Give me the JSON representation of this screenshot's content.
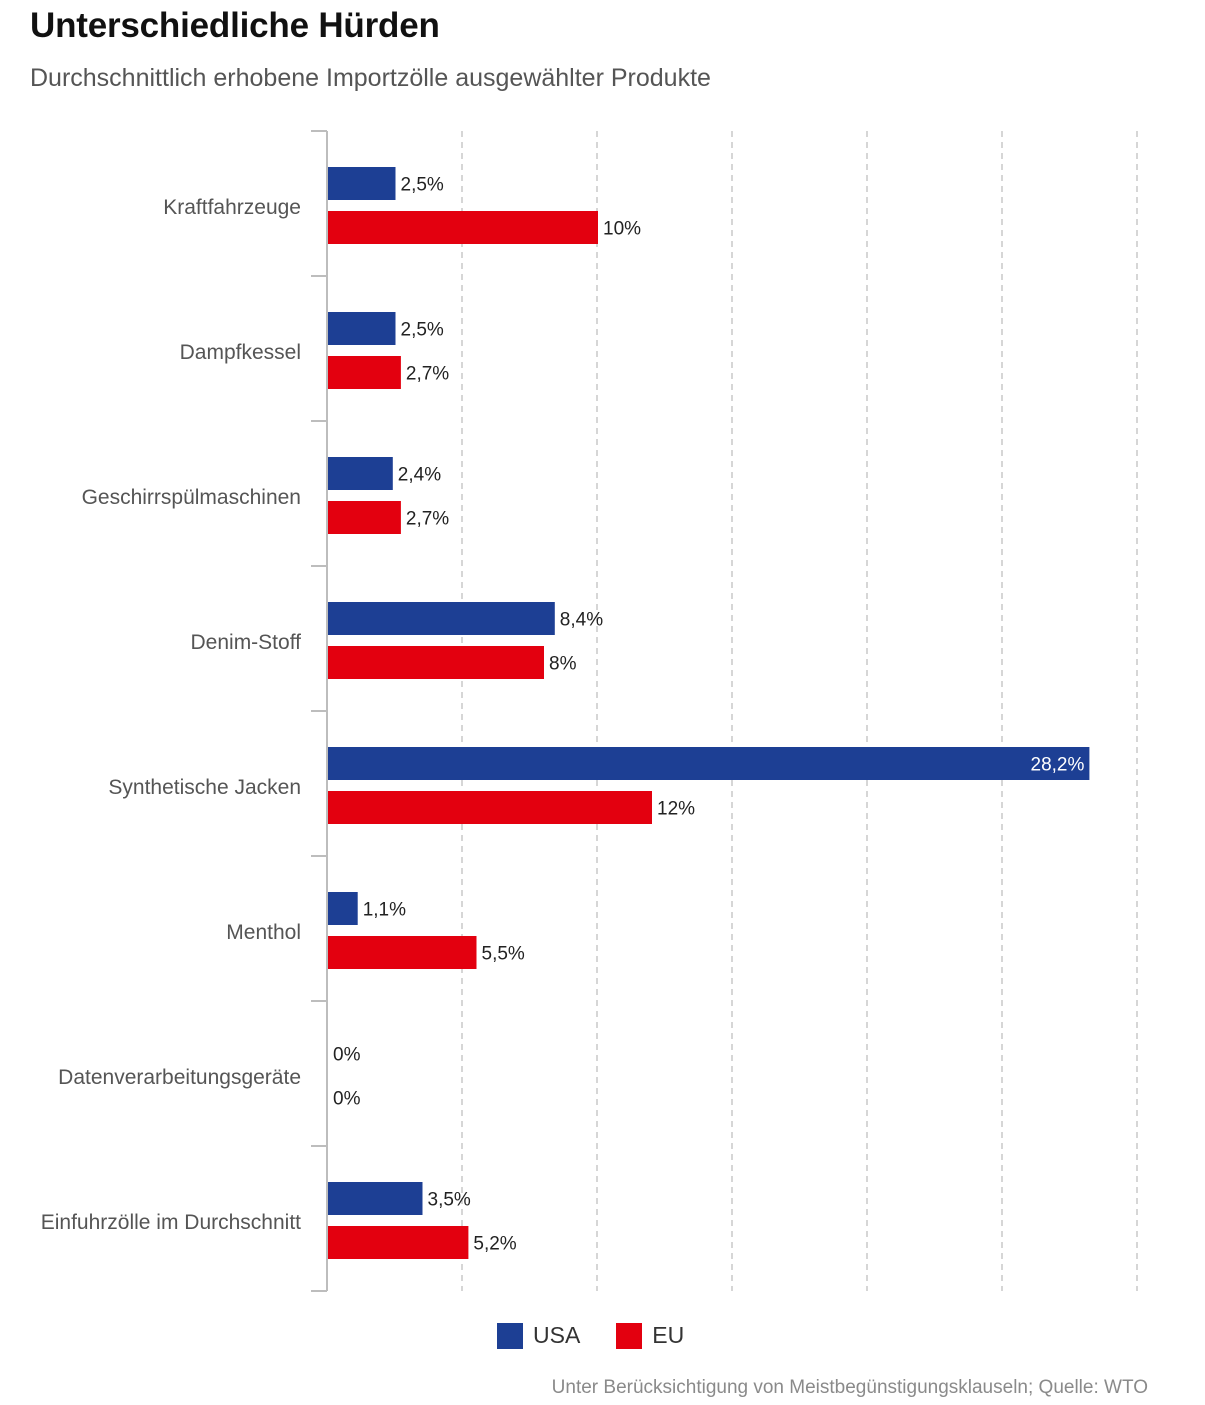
{
  "header": {
    "title": "Unterschiedliche Hürden",
    "subtitle": "Durchschnittlich erhobene Importzölle ausgewählter Produkte"
  },
  "legend": [
    {
      "label": "USA",
      "color": "#1d3f94"
    },
    {
      "label": "EU",
      "color": "#e3000f"
    }
  ],
  "footer": {
    "source": "Unter Berücksichtigung von Meistbegünstigungsklauseln; Quelle: WTO"
  },
  "chart_data": {
    "type": "bar",
    "orientation": "horizontal",
    "title": "Unterschiedliche Hürden",
    "subtitle": "Durchschnittlich erhobene Importzölle ausgewählter Produkte",
    "xlabel": "",
    "ylabel": "",
    "xlim": [
      0,
      30
    ],
    "grid": true,
    "legend_position": "bottom",
    "categories": [
      "Kraftfahrzeuge",
      "Dampfkessel",
      "Geschirrspülmaschinen",
      "Denim-Stoff",
      "Synthetische Jacken",
      "Menthol",
      "Datenverarbeitungsgeräte",
      "Einfuhrzölle im Durchschnitt"
    ],
    "series": [
      {
        "name": "USA",
        "color": "#1d3f94",
        "values": [
          2.5,
          2.5,
          2.4,
          8.4,
          28.2,
          1.1,
          0,
          3.5
        ],
        "labels": [
          "2,5%",
          "2,5%",
          "2,4%",
          "8,4%",
          "28,2%",
          "1,1%",
          "0%",
          "3,5%"
        ]
      },
      {
        "name": "EU",
        "color": "#e3000f",
        "values": [
          10,
          2.7,
          2.7,
          8,
          12,
          5.5,
          0,
          5.2
        ],
        "labels": [
          "10%",
          "2,7%",
          "2,7%",
          "8%",
          "12%",
          "5,5%",
          "0%",
          "5,2%"
        ]
      }
    ],
    "source": "Unter Berücksichtigung von Meistbegünstigungsklauseln; Quelle: WTO"
  }
}
